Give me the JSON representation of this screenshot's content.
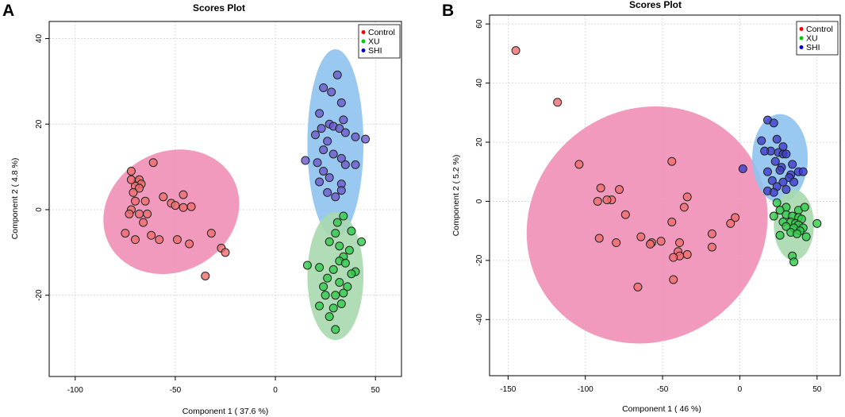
{
  "figure": {
    "panels": [
      "A",
      "B"
    ]
  },
  "chart_data": [
    {
      "panel": "A",
      "type": "scatter",
      "title": "Scores Plot",
      "xlabel": "Component 1 ( 37.6 %)",
      "ylabel": "Component 2 ( 4.8 %)",
      "xlim": [
        -113,
        63
      ],
      "ylim": [
        -39,
        44
      ],
      "xticks": [
        -100,
        -50,
        0,
        50
      ],
      "yticks": [
        -20,
        0,
        20,
        40
      ],
      "xtick_labels": [
        "-100",
        "-50",
        "0",
        "50"
      ],
      "ytick_labels": [
        "-20",
        "0",
        "20",
        "40"
      ],
      "legend": [
        "Control",
        "XU",
        "SHI"
      ],
      "legend_position": "top-right",
      "colors": {
        "Control": "#f06b6b",
        "XU": "#2fca4a",
        "SHI": "#6a5acd"
      },
      "ellipse_colors": {
        "Control": "#ef8fb7",
        "XU": "#a8d9ae",
        "SHI": "#8ec2ee"
      },
      "ellipses": [
        {
          "group": "Control",
          "cx": -52,
          "cy": -0.5,
          "rx": 35,
          "ry": 14,
          "angle_deg": -28
        },
        {
          "group": "SHI",
          "cx": 30,
          "cy": 15.5,
          "rx": 14,
          "ry": 22,
          "angle_deg": 0
        },
        {
          "group": "XU",
          "cx": 30,
          "cy": -15.5,
          "rx": 14,
          "ry": 15,
          "angle_deg": 0
        }
      ],
      "series": [
        {
          "name": "Control",
          "points": [
            [
              -69,
              6.5
            ],
            [
              -68,
              7
            ],
            [
              -67,
              6
            ],
            [
              -70,
              5.5
            ],
            [
              -68,
              5
            ],
            [
              -72,
              9
            ],
            [
              -61,
              11
            ],
            [
              -72,
              7
            ],
            [
              -71,
              4
            ],
            [
              -65,
              2
            ],
            [
              -56,
              3
            ],
            [
              -52,
              1.5
            ],
            [
              -50,
              1
            ],
            [
              -46,
              3.5
            ],
            [
              -46,
              0.5
            ],
            [
              -42,
              0.7
            ],
            [
              -70,
              2
            ],
            [
              -72,
              0
            ],
            [
              -68,
              -1
            ],
            [
              -64,
              -1
            ],
            [
              -66,
              -3
            ],
            [
              -62,
              -6
            ],
            [
              -58,
              -7
            ],
            [
              -70,
              -7
            ],
            [
              -75,
              -5.5
            ],
            [
              -73,
              -1
            ],
            [
              -49,
              -7
            ],
            [
              -43,
              -8
            ],
            [
              -32,
              -5.5
            ],
            [
              -27,
              -9
            ],
            [
              -25,
              -10
            ],
            [
              -35,
              -15.5
            ]
          ]
        },
        {
          "name": "SHI",
          "points": [
            [
              31,
              31.5
            ],
            [
              24,
              28.5
            ],
            [
              28,
              27.5
            ],
            [
              33,
              25
            ],
            [
              22,
              22.5
            ],
            [
              27,
              20
            ],
            [
              34,
              21
            ],
            [
              29,
              19.5
            ],
            [
              23,
              19
            ],
            [
              32,
              19
            ],
            [
              35,
              18
            ],
            [
              20,
              17.5
            ],
            [
              40,
              17
            ],
            [
              26,
              16
            ],
            [
              45,
              16.5
            ],
            [
              24,
              14
            ],
            [
              29,
              13
            ],
            [
              33,
              12
            ],
            [
              15,
              11.5
            ],
            [
              21,
              11
            ],
            [
              35,
              10.5
            ],
            [
              40,
              10.5
            ],
            [
              24,
              9
            ],
            [
              27,
              7.5
            ],
            [
              22,
              6.5
            ],
            [
              33,
              6
            ],
            [
              26,
              4
            ],
            [
              33,
              4.5
            ],
            [
              30,
              3
            ]
          ]
        },
        {
          "name": "XU",
          "points": [
            [
              34,
              -1.5
            ],
            [
              31,
              -3
            ],
            [
              30,
              -5.5
            ],
            [
              38,
              -5
            ],
            [
              27,
              -7.5
            ],
            [
              43,
              -7.5
            ],
            [
              32,
              -8.5
            ],
            [
              37,
              -9.5
            ],
            [
              34,
              -11
            ],
            [
              32,
              -12
            ],
            [
              35,
              -12.5
            ],
            [
              16,
              -13
            ],
            [
              22,
              -13.5
            ],
            [
              29,
              -14
            ],
            [
              40,
              -14.5
            ],
            [
              38,
              -15
            ],
            [
              26,
              -16
            ],
            [
              32,
              -17
            ],
            [
              24,
              -18
            ],
            [
              36,
              -18
            ],
            [
              30,
              -20
            ],
            [
              34,
              -19.5
            ],
            [
              25,
              -20
            ],
            [
              22,
              -22.5
            ],
            [
              33,
              -22
            ],
            [
              29,
              -23
            ],
            [
              27,
              -25
            ],
            [
              30,
              -28
            ]
          ]
        }
      ]
    },
    {
      "panel": "B",
      "type": "scatter",
      "title": "Scores Plot",
      "xlabel": "Component 1 ( 46 %)",
      "ylabel": "Component 2 ( 5.2 %)",
      "xlim": [
        -162,
        65
      ],
      "ylim": [
        -59,
        63
      ],
      "xticks": [
        -150,
        -100,
        -50,
        0,
        50
      ],
      "yticks": [
        -40,
        -20,
        0,
        20,
        40,
        60
      ],
      "xtick_labels": [
        "-150",
        "-100",
        "-50",
        "0",
        "50"
      ],
      "ytick_labels": [
        "-40",
        "-20",
        "0",
        "20",
        "40",
        "60"
      ],
      "legend": [
        "Control",
        "XU",
        "SHI"
      ],
      "legend_position": "top-right",
      "colors": {
        "Control": "#f06b6b",
        "XU": "#2fca4a",
        "SHI": "#3d3dcc"
      },
      "ellipse_colors": {
        "Control": "#ef8fb7",
        "XU": "#a8d9ae",
        "SHI": "#8ec2ee"
      },
      "ellipses": [
        {
          "group": "Control",
          "cx": -60,
          "cy": -8,
          "rx": 80,
          "ry": 39,
          "angle_deg": -38
        },
        {
          "group": "SHI",
          "cx": 26,
          "cy": 14.5,
          "rx": 18,
          "ry": 15,
          "angle_deg": 0
        },
        {
          "group": "XU",
          "cx": 35,
          "cy": -8,
          "rx": 13,
          "ry": 12,
          "angle_deg": 0
        }
      ],
      "series": [
        {
          "name": "Control",
          "points": [
            [
              -145,
              51
            ],
            [
              -118,
              33.5
            ],
            [
              -104,
              12.5
            ],
            [
              -44,
              13.5
            ],
            [
              -90,
              4.5
            ],
            [
              -78,
              4
            ],
            [
              -83,
              0.5
            ],
            [
              -86,
              0.5
            ],
            [
              -92,
              0
            ],
            [
              -34,
              1.5
            ],
            [
              -74,
              -4.5
            ],
            [
              -36,
              -2
            ],
            [
              -3,
              -5.5
            ],
            [
              -44,
              -7
            ],
            [
              -6,
              -7.5
            ],
            [
              -91,
              -12.5
            ],
            [
              -80,
              -14
            ],
            [
              -64,
              -12
            ],
            [
              -51,
              -13.5
            ],
            [
              -57,
              -14
            ],
            [
              -58,
              -14.5
            ],
            [
              -39,
              -14
            ],
            [
              -18,
              -11
            ],
            [
              -18,
              -15.5
            ],
            [
              -40,
              -17
            ],
            [
              -34,
              -18
            ],
            [
              -39,
              -18.5
            ],
            [
              -43,
              -19
            ],
            [
              -43,
              -26.5
            ],
            [
              -66,
              -29
            ]
          ]
        },
        {
          "name": "SHI",
          "points": [
            [
              18,
              27.5
            ],
            [
              22,
              26.5
            ],
            [
              14,
              20.5
            ],
            [
              24,
              21
            ],
            [
              20,
              17
            ],
            [
              28,
              18.5
            ],
            [
              16,
              17
            ],
            [
              25,
              16.5
            ],
            [
              28,
              16
            ],
            [
              30,
              16
            ],
            [
              23,
              13.5
            ],
            [
              34,
              12.5
            ],
            [
              27,
              11.5
            ],
            [
              26,
              10.5
            ],
            [
              18,
              10
            ],
            [
              33,
              9
            ],
            [
              38,
              10
            ],
            [
              41,
              10
            ],
            [
              32,
              8
            ],
            [
              21,
              7
            ],
            [
              28,
              6.5
            ],
            [
              35,
              6.5
            ],
            [
              24,
              5
            ],
            [
              30,
              4
            ],
            [
              18,
              3.5
            ],
            [
              22,
              3
            ],
            [
              2,
              11
            ]
          ]
        },
        {
          "name": "XU",
          "points": [
            [
              24,
              -0.5
            ],
            [
              30,
              -2
            ],
            [
              26,
              -3
            ],
            [
              38,
              -3
            ],
            [
              42,
              -2
            ],
            [
              30,
              -4.5
            ],
            [
              22,
              -5
            ],
            [
              34,
              -5
            ],
            [
              38,
              -5.5
            ],
            [
              40,
              -6
            ],
            [
              28,
              -7
            ],
            [
              33,
              -7
            ],
            [
              36,
              -7.5
            ],
            [
              38,
              -8
            ],
            [
              30,
              -8.5
            ],
            [
              35,
              -9
            ],
            [
              41,
              -9
            ],
            [
              33,
              -10.5
            ],
            [
              39,
              -10
            ],
            [
              50,
              -7.5
            ],
            [
              26,
              -11.5
            ],
            [
              37,
              -11
            ],
            [
              43,
              -12
            ],
            [
              34,
              -18.5
            ],
            [
              35,
              -20.5
            ]
          ]
        }
      ]
    }
  ]
}
